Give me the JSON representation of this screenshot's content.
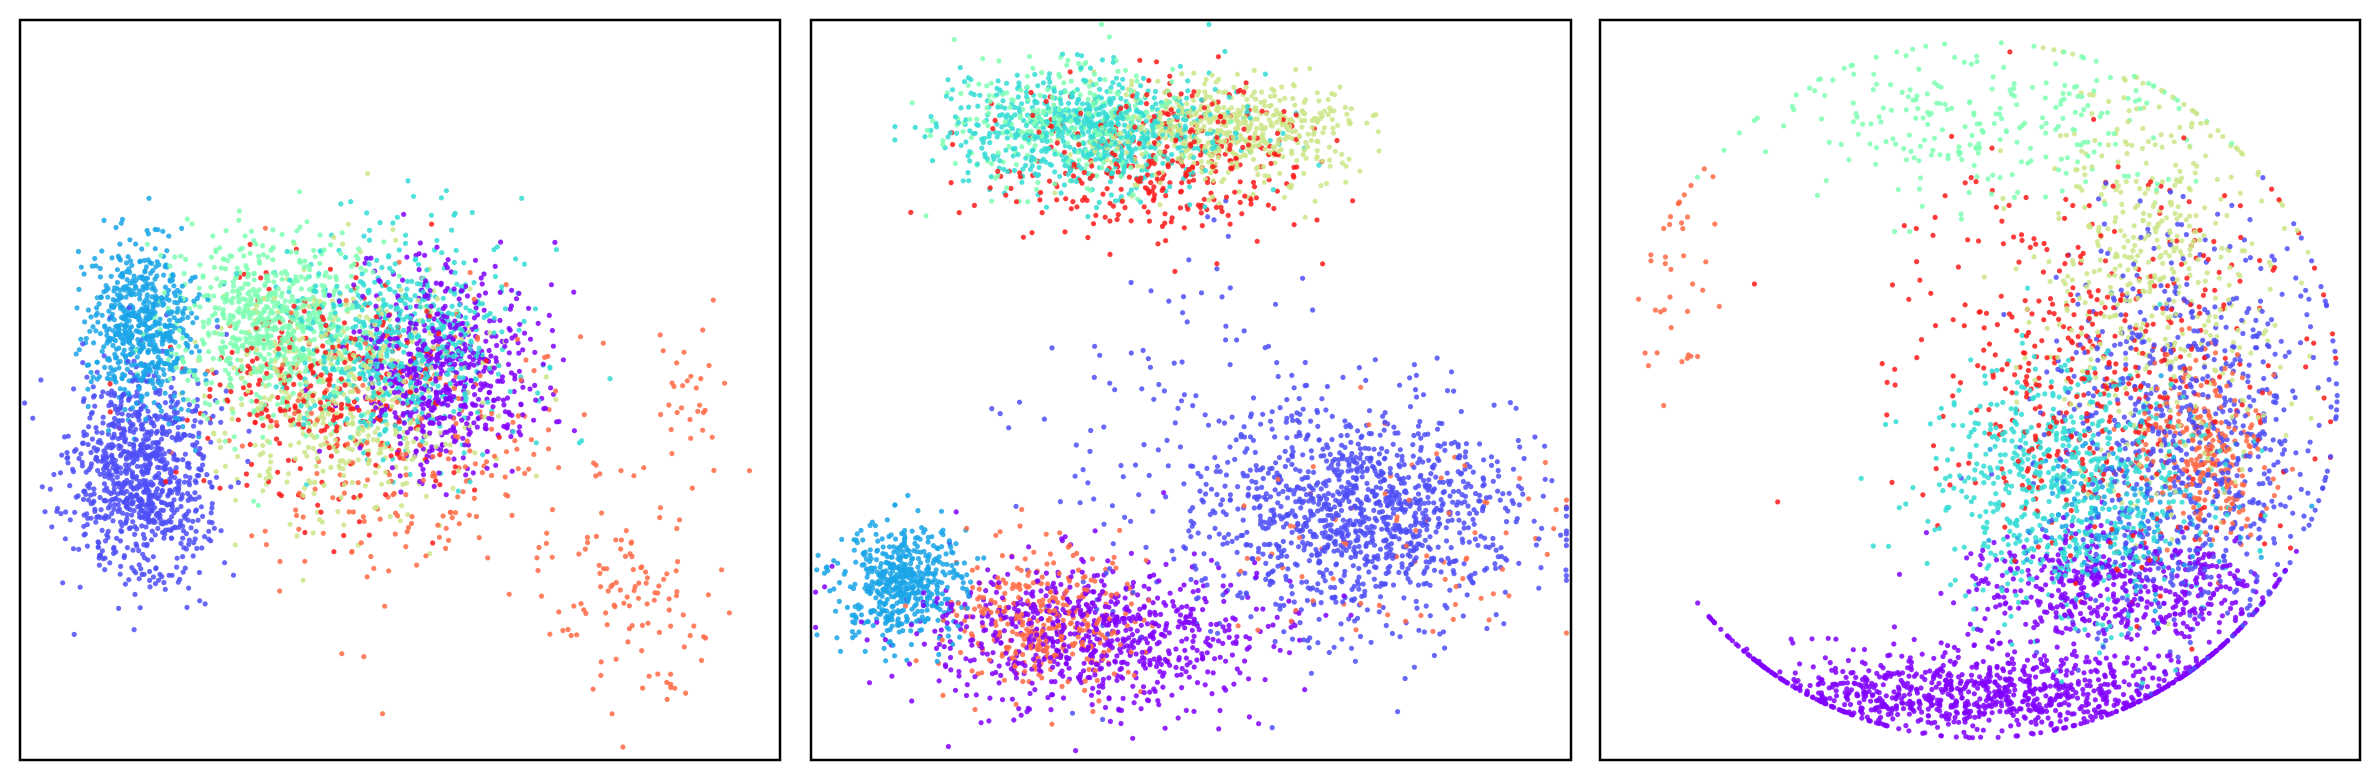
{
  "figure": {
    "panel_count": 3,
    "palette": {
      "class_0": "#8000ff",
      "class_1": "#4d4df8",
      "class_2": "#1aa4e8",
      "class_3": "#33dcd5",
      "class_4": "#80ffb4",
      "class_5": "#cce68a",
      "class_6": "#ff6a45",
      "class_7": "#ff1a1a"
    }
  },
  "chart_data": [
    {
      "type": "scatter",
      "title": "",
      "xlabel": "",
      "ylabel": "",
      "axes_ticks": false,
      "grid": false,
      "legend": "none",
      "xlim": [
        0,
        100
      ],
      "ylim": [
        0,
        100
      ],
      "series": [
        {
          "color": "#4d4df8",
          "center": [
            16,
            38
          ],
          "spread": [
            4.5,
            7
          ],
          "count": 900
        },
        {
          "color": "#1aa4e8",
          "center": [
            16,
            59
          ],
          "spread": [
            3.5,
            6
          ],
          "count": 600
        },
        {
          "color": "#80ffb4",
          "center": [
            33,
            59
          ],
          "spread": [
            6,
            6
          ],
          "count": 700
        },
        {
          "color": "#cce68a",
          "center": [
            43,
            49
          ],
          "spread": [
            9,
            8
          ],
          "count": 500
        },
        {
          "color": "#33dcd5",
          "center": [
            50,
            56
          ],
          "spread": [
            7,
            7
          ],
          "count": 650
        },
        {
          "color": "#8000ff",
          "center": [
            56,
            53
          ],
          "spread": [
            6,
            7
          ],
          "count": 600
        },
        {
          "color": "#ff1a1a",
          "center": [
            40,
            50
          ],
          "spread": [
            9,
            8
          ],
          "count": 300
        },
        {
          "color": "#ff6a45",
          "center": [
            52,
            42
          ],
          "spread": [
            11,
            10
          ],
          "count": 220
        },
        {
          "color": "#ff6a45",
          "center": [
            81,
            22
          ],
          "spread": [
            6,
            8
          ],
          "count": 110
        },
        {
          "color": "#ff6a45",
          "center": [
            89,
            48
          ],
          "spread": [
            2.5,
            5
          ],
          "count": 30
        }
      ]
    },
    {
      "type": "scatter",
      "title": "",
      "xlabel": "",
      "ylabel": "",
      "axes_ticks": false,
      "grid": false,
      "legend": "none",
      "xlim": [
        0,
        100
      ],
      "ylim": [
        0,
        100
      ],
      "series": [
        {
          "color": "#33dcd5",
          "center": [
            37,
            85
          ],
          "spread": [
            9,
            4
          ],
          "count": 700
        },
        {
          "color": "#80ffb4",
          "center": [
            34,
            86
          ],
          "spread": [
            8,
            4
          ],
          "count": 300
        },
        {
          "color": "#cce68a",
          "center": [
            55,
            85
          ],
          "spread": [
            8,
            3.5
          ],
          "count": 500
        },
        {
          "color": "#ff1a1a",
          "center": [
            46,
            81
          ],
          "spread": [
            10,
            5
          ],
          "count": 350
        },
        {
          "color": "#4d4df8",
          "center": [
            73,
            33
          ],
          "spread": [
            10,
            7
          ],
          "count": 1100
        },
        {
          "color": "#ff6a45",
          "center": [
            80,
            30
          ],
          "spread": [
            12,
            8
          ],
          "count": 80
        },
        {
          "color": "#1aa4e8",
          "center": [
            12,
            24
          ],
          "spread": [
            4,
            4
          ],
          "count": 500
        },
        {
          "color": "#8000ff",
          "center": [
            37,
            17
          ],
          "spread": [
            12,
            5
          ],
          "count": 750
        },
        {
          "color": "#ff6a45",
          "center": [
            30,
            19
          ],
          "spread": [
            6,
            5
          ],
          "count": 350
        },
        {
          "color": "#4d4df8",
          "center": [
            52,
            40
          ],
          "spread": [
            12,
            14
          ],
          "count": 200
        }
      ]
    },
    {
      "type": "scatter",
      "title": "",
      "xlabel": "",
      "ylabel": "",
      "axes_ticks": false,
      "grid": false,
      "legend": "none",
      "xlim": [
        0,
        100
      ],
      "ylim": [
        0,
        100
      ],
      "series": [
        {
          "color": "#8000ff",
          "center": [
            52,
            9
          ],
          "spread": [
            18,
            3
          ],
          "count": 1000
        },
        {
          "color": "#8000ff",
          "center": [
            68,
            23
          ],
          "spread": [
            10,
            4
          ],
          "count": 500
        },
        {
          "color": "#33dcd5",
          "center": [
            62,
            37
          ],
          "spread": [
            9,
            9
          ],
          "count": 700
        },
        {
          "color": "#4d4df8",
          "center": [
            77,
            44
          ],
          "spread": [
            9,
            14
          ],
          "count": 800
        },
        {
          "color": "#cce68a",
          "center": [
            73,
            65
          ],
          "spread": [
            8,
            14
          ],
          "count": 500
        },
        {
          "color": "#80ffb4",
          "center": [
            50,
            86
          ],
          "spread": [
            15,
            6
          ],
          "count": 250
        },
        {
          "color": "#ff1a1a",
          "center": [
            66,
            52
          ],
          "spread": [
            13,
            14
          ],
          "count": 500
        },
        {
          "color": "#ff6a45",
          "center": [
            80,
            42
          ],
          "spread": [
            4,
            6
          ],
          "count": 250
        },
        {
          "color": "#1aa4e8",
          "center": [
            70,
            32
          ],
          "spread": [
            8,
            6
          ],
          "count": 150
        },
        {
          "color": "#ff6a45",
          "center": [
            10,
            65
          ],
          "spread": [
            2.5,
            8
          ],
          "count": 40
        }
      ],
      "boundary": "circle"
    }
  ]
}
